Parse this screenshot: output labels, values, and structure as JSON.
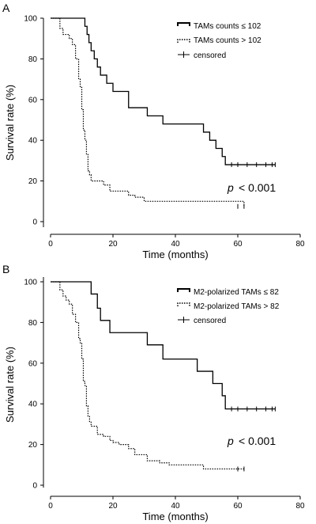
{
  "chart_data": [
    {
      "type": "line",
      "step": true,
      "panel_label": "A",
      "xlabel": "Time (months)",
      "ylabel": "Survival rate (%)",
      "xlim": [
        0,
        80
      ],
      "ylim": [
        0,
        100
      ],
      "xticks": [
        0,
        20,
        40,
        60,
        80
      ],
      "yticks": [
        0,
        20,
        40,
        60,
        80,
        100
      ],
      "legend_position": "top-right",
      "p_label": "p",
      "p_value": "< 0.001",
      "censored_legend": "censored",
      "series": [
        {
          "name": "TAMs counts ≤ 102",
          "style": "solid",
          "x": [
            0,
            10,
            11,
            11.7,
            12.3,
            13,
            14,
            15,
            16,
            18,
            20,
            25,
            31,
            36,
            46,
            49,
            51,
            53,
            55,
            56,
            72
          ],
          "y": [
            100,
            100,
            96,
            92,
            88,
            84,
            80,
            76,
            72,
            68,
            64,
            56,
            52,
            48,
            48,
            44,
            40,
            36,
            32,
            28,
            28
          ],
          "censored_x": [
            58,
            60,
            63,
            66,
            69,
            71,
            72
          ]
        },
        {
          "name": "TAMs counts > 102",
          "style": "dotted",
          "x": [
            0,
            2,
            3,
            4,
            6,
            7,
            8,
            9,
            9.5,
            10,
            10.5,
            11,
            11.5,
            12,
            12.5,
            13,
            14,
            17,
            19,
            22,
            25,
            27,
            30,
            62
          ],
          "y": [
            100,
            100,
            95,
            92,
            90,
            87,
            80,
            70,
            66,
            55,
            45,
            40,
            33,
            25,
            23,
            20,
            20,
            18,
            15,
            15,
            13,
            12,
            10,
            7.5
          ],
          "censored_x": [
            60,
            62
          ]
        }
      ]
    },
    {
      "type": "line",
      "step": true,
      "panel_label": "B",
      "xlabel": "Time (months)",
      "ylabel": "Survival rate (%)",
      "xlim": [
        0,
        80
      ],
      "ylim": [
        0,
        100
      ],
      "xticks": [
        0,
        20,
        40,
        60,
        80
      ],
      "yticks": [
        0,
        20,
        40,
        60,
        80,
        100
      ],
      "legend_position": "top-right",
      "p_label": "p",
      "p_value": "< 0.001",
      "censored_legend": "censored",
      "series": [
        {
          "name": "M2-polarized TAMs ≤ 82",
          "style": "solid",
          "x": [
            0,
            12,
            13,
            15,
            16,
            19,
            31,
            36,
            47,
            52,
            55,
            56,
            72
          ],
          "y": [
            100,
            100,
            94,
            87,
            81,
            75,
            69,
            62,
            56,
            50,
            44,
            37.5,
            37.5
          ],
          "censored_x": [
            58,
            60,
            63,
            66,
            69,
            71,
            72
          ]
        },
        {
          "name": "M2-polarized TAMs > 82",
          "style": "dotted",
          "x": [
            0,
            2,
            3,
            4,
            5,
            6,
            7,
            8,
            9,
            9.5,
            10,
            10.5,
            11,
            11.5,
            12,
            12.5,
            13,
            15,
            17,
            19,
            20,
            22,
            25,
            27,
            31,
            35,
            38,
            46,
            49,
            62
          ],
          "y": [
            100,
            100,
            96,
            93,
            91,
            89,
            84,
            80,
            72,
            70,
            62,
            51,
            49,
            39,
            34,
            31,
            29,
            25,
            24,
            22,
            21,
            20,
            18,
            15,
            12,
            11,
            10,
            10,
            8,
            8
          ],
          "censored_x": [
            60,
            62
          ]
        }
      ]
    }
  ]
}
